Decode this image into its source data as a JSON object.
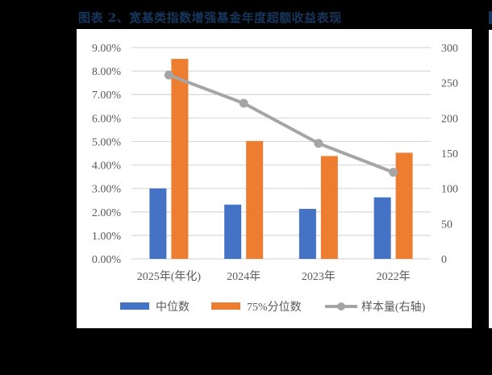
{
  "title": "图表 2、宽基类指数增强基金年度超额收益表现",
  "chart_data": {
    "type": "bar",
    "title": "图表 2、宽基类指数增强基金年度超额收益表现",
    "xlabel": "",
    "ylabel": "",
    "categories": [
      "2025年(年化)",
      "2024年",
      "2023年",
      "2022年"
    ],
    "series": [
      {
        "name": "中位数",
        "type": "bar",
        "axis": "left",
        "color": "#4472c4",
        "values": [
          3.0,
          2.31,
          2.13,
          2.62
        ]
      },
      {
        "name": "75%分位数",
        "type": "bar",
        "axis": "left",
        "color": "#ed7d31",
        "values": [
          8.52,
          5.02,
          4.38,
          4.52
        ]
      },
      {
        "name": "样本量(右轴)",
        "type": "line",
        "axis": "right",
        "color": "#a5a5a5",
        "marker": "circle",
        "values": [
          261,
          221,
          164,
          123
        ]
      }
    ],
    "ylim": [
      0,
      9
    ],
    "y_ticks": [
      "0.00%",
      "1.00%",
      "2.00%",
      "3.00%",
      "4.00%",
      "5.00%",
      "6.00%",
      "7.00%",
      "8.00%",
      "9.00%"
    ],
    "y2lim": [
      0,
      300
    ],
    "y2_ticks": [
      "0",
      "50",
      "100",
      "150",
      "200",
      "250",
      "300"
    ],
    "grid": true,
    "legend_position": "bottom"
  },
  "legend": [
    {
      "label": "中位数",
      "color": "#4472c4",
      "kind": "bar"
    },
    {
      "label": "75%分位数",
      "color": "#ed7d31",
      "kind": "bar"
    },
    {
      "label": "样本量(右轴)",
      "color": "#a5a5a5",
      "kind": "line"
    }
  ]
}
